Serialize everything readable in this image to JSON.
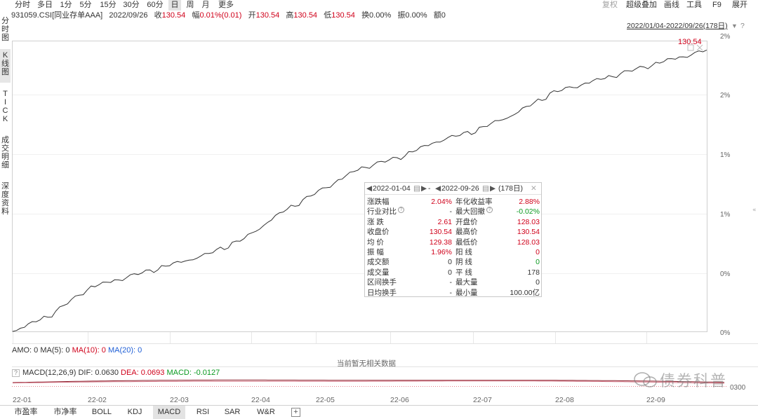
{
  "toolbar": {
    "periods": [
      "分时",
      "多日",
      "1分",
      "5分",
      "15分",
      "30分",
      "60分",
      "日",
      "周",
      "月",
      "更多"
    ],
    "active_period": "日",
    "tools": [
      "复权",
      "超级叠加",
      "画线",
      "工具",
      "F9",
      "展开"
    ]
  },
  "info": {
    "code": "931059.CSI[同业存单AAA]",
    "date": "2022/09/26",
    "close_label": "收",
    "close": "130.54",
    "change_label": "幅",
    "change": "0.01%(0.01)",
    "open_label": "开",
    "open": "130.54",
    "high_label": "高",
    "high": "130.54",
    "low_label": "低",
    "low": "130.54",
    "turnover": "换0.00%",
    "amplitude": "振0.00%",
    "amount": "额0"
  },
  "side_tabs": [
    "分时图",
    "K线图",
    "TICK",
    "成交明细",
    "深度资料"
  ],
  "date_range": "2022/01/04-2022/09/26(178日)",
  "range_help": "?",
  "chart": {
    "last_label": "130.54",
    "y_ticks": [
      "2%",
      "2%",
      "1%",
      "1%",
      "0%",
      "0%"
    ],
    "x_ticks": [
      "22-01",
      "22-02",
      "22-03",
      "22-04",
      "22-05",
      "22-06",
      "22-07",
      "22-08",
      "22-09"
    ]
  },
  "chart_data": {
    "type": "line",
    "x": [
      "2022-01-04",
      "2022-01-15",
      "2022-02-01",
      "2022-02-15",
      "2022-03-01",
      "2022-03-15",
      "2022-04-01",
      "2022-04-15",
      "2022-05-01",
      "2022-05-15",
      "2022-06-01",
      "2022-06-15",
      "2022-07-01",
      "2022-07-15",
      "2022-08-01",
      "2022-08-15",
      "2022-09-01",
      "2022-09-15",
      "2022-09-26"
    ],
    "series": [
      {
        "values": [
          127.94,
          128.1,
          128.35,
          128.45,
          128.55,
          128.65,
          128.8,
          129.05,
          129.25,
          129.45,
          129.55,
          129.7,
          129.8,
          129.95,
          130.15,
          130.25,
          130.35,
          130.45,
          130.54
        ]
      }
    ],
    "xlabel": "",
    "ylabel": "",
    "grid": true
  },
  "popup": {
    "start_date": "2022-01-04",
    "sep": "-",
    "end_date": "2022-09-26",
    "days": "(178日)",
    "left_rows": [
      {
        "label": "涨跌幅",
        "value": "2.04%",
        "color": "red"
      },
      {
        "label": "行业对比",
        "value": "-",
        "color": "",
        "help": true
      },
      {
        "label": "涨    跌",
        "value": "2.61",
        "color": "red"
      },
      {
        "label": "收盘价",
        "value": "130.54",
        "color": "red"
      },
      {
        "label": "均    价",
        "value": "129.38",
        "color": "red"
      },
      {
        "label": "振    幅",
        "value": "1.96%",
        "color": "red"
      },
      {
        "label": "成交额",
        "value": "0",
        "color": ""
      },
      {
        "label": "成交量",
        "value": "0",
        "color": ""
      },
      {
        "label": "区间换手",
        "value": "-",
        "color": ""
      },
      {
        "label": "日均换手",
        "value": "-",
        "color": ""
      }
    ],
    "right_rows": [
      {
        "label": "年化收益率",
        "value": "2.88%",
        "color": "red"
      },
      {
        "label": "最大回撤",
        "value": "-0.02%",
        "color": "green",
        "help": true
      },
      {
        "label": "开盘价",
        "value": "128.03",
        "color": "red"
      },
      {
        "label": "最高价",
        "value": "130.54",
        "color": "red"
      },
      {
        "label": "最低价",
        "value": "128.03",
        "color": "red"
      },
      {
        "label": "阳    线",
        "value": "0",
        "color": "red"
      },
      {
        "label": "阴    线",
        "value": "0",
        "color": "green"
      },
      {
        "label": "平    线",
        "value": "178",
        "color": ""
      },
      {
        "label": "最大量",
        "value": "0",
        "color": ""
      },
      {
        "label": "最小量",
        "value": "100.00亿",
        "color": ""
      }
    ]
  },
  "amo": {
    "label": "AMO: 0",
    "ma5": "MA(5): 0",
    "ma10": "MA(10): 0",
    "ma20": "MA(20): 0",
    "no_data": "当前暂无相关数据"
  },
  "macd": {
    "help": "?",
    "name": "MACD(12,26,9)",
    "dif": "DIF: 0.0630",
    "dea": "DEA: 0.0693",
    "macd": "MACD: -0.0127",
    "right_value": "0300"
  },
  "bottom_tabs": [
    "市盈率",
    "市净率",
    "BOLL",
    "KDJ",
    "MACD",
    "RSI",
    "SAR",
    "W&R"
  ],
  "active_bottom_tab": "MACD",
  "add_tab": "+",
  "watermark": "债券科普",
  "colors": {
    "up": "#d0021b",
    "down": "#0a9a20",
    "ma10": "#d0021b",
    "ma20": "#1f5fd6",
    "dea": "#d0021b",
    "macd": "#0a9a20"
  }
}
